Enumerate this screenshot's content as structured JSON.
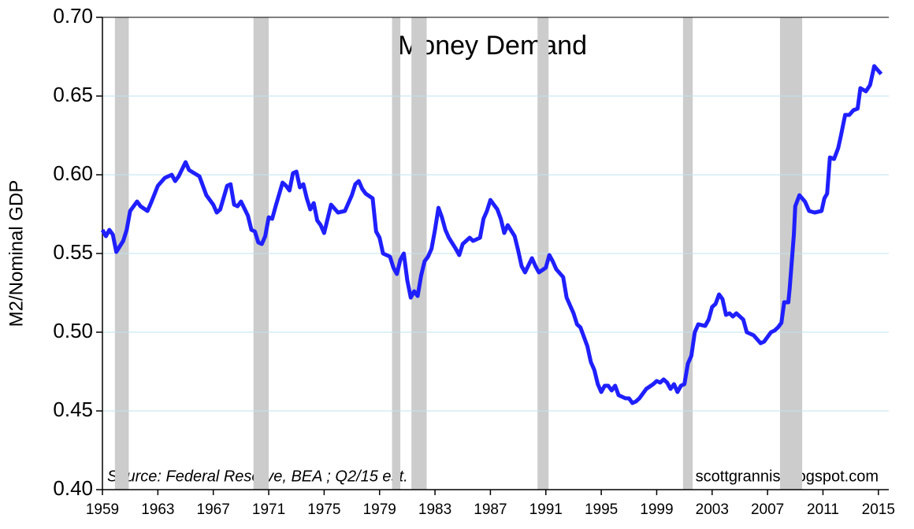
{
  "chart_data": {
    "type": "line",
    "title": "Money Demand",
    "ylabel": "M2/Nominal GDP",
    "annotations": [
      "Source:  Federal Reserve, BEA ; Q2/15 est.",
      "scottgrannis.blogspot.com"
    ],
    "color": "#1f1fff",
    "band_color": "#cccccc",
    "grid": true,
    "xlim": [
      1959,
      2015.75
    ],
    "ylim": [
      0.4,
      0.7
    ],
    "xticks": [
      1959,
      1963,
      1967,
      1971,
      1975,
      1979,
      1983,
      1987,
      1991,
      1995,
      1999,
      2003,
      2007,
      2011,
      2015
    ],
    "yticks": [
      {
        "value": 0.4,
        "label": "0.40"
      },
      0.45,
      {
        "value": 0.5,
        "label": "0.50"
      },
      0.55,
      {
        "value": 0.6,
        "label": "0.60"
      },
      0.65,
      {
        "value": 0.7,
        "label": "0.70"
      }
    ],
    "recessions": [
      [
        1959.9,
        1960.9
      ],
      [
        1969.9,
        1971.0
      ],
      [
        1979.9,
        1980.5
      ],
      [
        1981.3,
        1982.4
      ],
      [
        1990.4,
        1991.2
      ],
      [
        2000.9,
        2001.6
      ],
      [
        2007.9,
        2009.5
      ]
    ],
    "x": [
      1959.0,
      1959.25,
      1959.5,
      1959.75,
      1960.0,
      1960.5,
      1960.75,
      1961.0,
      1961.5,
      1961.75,
      1962.25,
      1962.5,
      1963.0,
      1963.5,
      1964.0,
      1964.25,
      1964.5,
      1965.0,
      1965.25,
      1966.0,
      1966.5,
      1967.0,
      1967.25,
      1967.5,
      1968.0,
      1968.25,
      1968.5,
      1968.75,
      1969.0,
      1969.5,
      1969.75,
      1970.0,
      1970.25,
      1970.5,
      1970.75,
      1971.0,
      1971.25,
      1971.5,
      1972.0,
      1972.25,
      1972.5,
      1972.75,
      1973.0,
      1973.25,
      1973.5,
      1973.75,
      1974.0,
      1974.25,
      1974.5,
      1974.75,
      1975.0,
      1975.5,
      1976.0,
      1976.5,
      1977.0,
      1977.25,
      1977.5,
      1977.75,
      1978.0,
      1978.5,
      1978.75,
      1979.0,
      1979.25,
      1979.75,
      1980.0,
      1980.25,
      1980.5,
      1980.75,
      1981.0,
      1981.25,
      1981.5,
      1981.75,
      1982.0,
      1982.25,
      1982.5,
      1982.75,
      1983.0,
      1983.25,
      1983.5,
      1983.75,
      1984.0,
      1984.5,
      1984.75,
      1985.0,
      1985.5,
      1985.75,
      1986.25,
      1986.5,
      1986.75,
      1987.0,
      1987.5,
      1987.75,
      1988.0,
      1988.25,
      1988.75,
      1989.0,
      1989.25,
      1989.5,
      1990.0,
      1990.25,
      1990.5,
      1991.0,
      1991.25,
      1991.5,
      1991.75,
      1992.25,
      1992.5,
      1993.0,
      1993.25,
      1993.5,
      1994.0,
      1994.25,
      1994.5,
      1994.75,
      1995.0,
      1995.25,
      1995.5,
      1995.75,
      1996.0,
      1996.25,
      1996.75,
      1997.0,
      1997.25,
      1997.5,
      1997.75,
      1998.25,
      1998.75,
      1999.0,
      1999.25,
      1999.5,
      1999.75,
      2000.0,
      2000.25,
      2000.5,
      2000.75,
      2001.0,
      2001.25,
      2001.5,
      2001.75,
      2002.0,
      2002.5,
      2002.75,
      2003.0,
      2003.25,
      2003.5,
      2003.75,
      2004.0,
      2004.25,
      2004.5,
      2004.75,
      2005.25,
      2005.5,
      2005.75,
      2006.0,
      2006.5,
      2006.75,
      2007.0,
      2007.25,
      2007.5,
      2007.75,
      2008.0,
      2008.2,
      2008.5,
      2008.6,
      2008.9,
      2009.0,
      2009.3,
      2009.7,
      2010.0,
      2010.4,
      2010.9,
      2011.1,
      2011.3,
      2011.5,
      2011.8,
      2012.1,
      2012.3,
      2012.6,
      2012.9,
      2013.2,
      2013.5,
      2013.7,
      2014.1,
      2014.4,
      2014.7,
      2015.2
    ],
    "values": [
      0.565,
      0.561,
      0.565,
      0.562,
      0.551,
      0.558,
      0.565,
      0.577,
      0.583,
      0.58,
      0.577,
      0.582,
      0.593,
      0.598,
      0.6,
      0.596,
      0.599,
      0.608,
      0.603,
      0.599,
      0.587,
      0.581,
      0.576,
      0.578,
      0.593,
      0.594,
      0.581,
      0.58,
      0.583,
      0.574,
      0.565,
      0.564,
      0.557,
      0.556,
      0.561,
      0.573,
      0.572,
      0.58,
      0.595,
      0.593,
      0.59,
      0.601,
      0.602,
      0.592,
      0.594,
      0.585,
      0.578,
      0.582,
      0.571,
      0.568,
      0.563,
      0.581,
      0.576,
      0.577,
      0.587,
      0.594,
      0.596,
      0.591,
      0.588,
      0.585,
      0.564,
      0.56,
      0.55,
      0.548,
      0.541,
      0.537,
      0.546,
      0.55,
      0.533,
      0.522,
      0.526,
      0.523,
      0.536,
      0.545,
      0.548,
      0.553,
      0.565,
      0.579,
      0.573,
      0.565,
      0.56,
      0.553,
      0.549,
      0.556,
      0.56,
      0.558,
      0.56,
      0.572,
      0.577,
      0.584,
      0.578,
      0.572,
      0.563,
      0.568,
      0.561,
      0.552,
      0.542,
      0.538,
      0.547,
      0.542,
      0.538,
      0.541,
      0.549,
      0.545,
      0.54,
      0.535,
      0.522,
      0.512,
      0.505,
      0.503,
      0.491,
      0.481,
      0.476,
      0.467,
      0.462,
      0.466,
      0.466,
      0.463,
      0.466,
      0.46,
      0.458,
      0.458,
      0.455,
      0.456,
      0.458,
      0.464,
      0.467,
      0.469,
      0.468,
      0.47,
      0.468,
      0.464,
      0.467,
      0.462,
      0.466,
      0.467,
      0.48,
      0.485,
      0.5,
      0.505,
      0.504,
      0.508,
      0.516,
      0.518,
      0.524,
      0.521,
      0.511,
      0.512,
      0.51,
      0.512,
      0.508,
      0.5,
      0.499,
      0.498,
      0.493,
      0.494,
      0.497,
      0.5,
      0.501,
      0.503,
      0.506,
      0.519,
      0.519,
      0.528,
      0.562,
      0.58,
      0.587,
      0.583,
      0.577,
      0.576,
      0.577,
      0.585,
      0.588,
      0.611,
      0.61,
      0.617,
      0.625,
      0.638,
      0.638,
      0.641,
      0.642,
      0.655,
      0.653,
      0.657,
      0.669,
      0.664
    ]
  }
}
